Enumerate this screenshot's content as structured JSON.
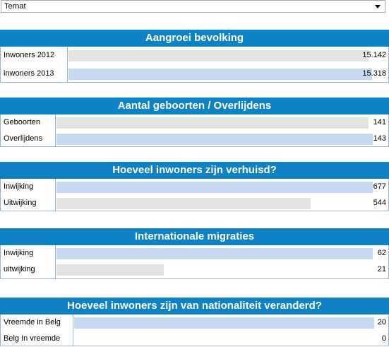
{
  "municipality": {
    "selected": "Ternat"
  },
  "sections": [
    {
      "title": "Aangroei bevolking",
      "max": 15318,
      "rows": [
        {
          "label": "Inwoners 2012",
          "value": 15142,
          "display": "15.142",
          "color": "#e4e4e4"
        },
        {
          "label": "inwoners 2013",
          "value": 15318,
          "display": "15.318",
          "color": "#c5d9f1"
        }
      ]
    },
    {
      "title": "Aantal geboorten / Overlijdens",
      "max": 143,
      "rows": [
        {
          "label": "Geboorten",
          "value": 141,
          "display": "141",
          "color": "#e4e4e4"
        },
        {
          "label": "Overlijdens",
          "value": 143,
          "display": "143",
          "color": "#c5d9f1"
        }
      ]
    },
    {
      "title": "Hoeveel inwoners zijn verhuisd?",
      "max": 677,
      "rows": [
        {
          "label": "Inwijking",
          "value": 677,
          "display": "677",
          "color": "#c5d9f1"
        },
        {
          "label": "Uitwijking",
          "value": 544,
          "display": "544",
          "color": "#e4e4e4"
        }
      ]
    },
    {
      "title": "Internationale migraties",
      "max": 62,
      "rows": [
        {
          "label": "Inwijking",
          "value": 62,
          "display": "62",
          "color": "#c5d9f1"
        },
        {
          "label": "uitwijking",
          "value": 21,
          "display": "21",
          "color": "#e4e4e4"
        }
      ]
    },
    {
      "title": "Hoeveel inwoners zijn van nationaliteit veranderd?",
      "max": 20,
      "rows": [
        {
          "label": "Vreemde in Belg",
          "value": 20,
          "display": "20",
          "color": "#c5d9f1"
        },
        {
          "label": "Belg In vreemde",
          "value": 0,
          "display": "0",
          "color": "#e4e4e4"
        }
      ]
    }
  ]
}
